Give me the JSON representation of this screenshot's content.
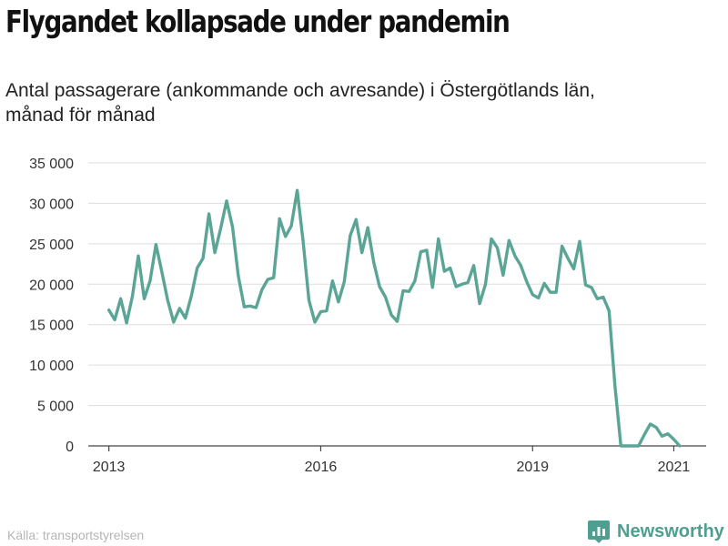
{
  "header": {
    "title": "Flygandet kollapsade under pandemin",
    "subtitle_line1": "Antal passagerare (ankommande och avresande) i Östergötlands län,",
    "subtitle_line2": "månad för månad"
  },
  "footer": {
    "source": "Källa: transportstyrelsen",
    "brand": "Newsworthy"
  },
  "colors": {
    "line": "#5aa596",
    "grid": "#dddddd",
    "brand": "#4e9e91"
  },
  "chart_data": {
    "type": "line",
    "title": "Flygandet kollapsade under pandemin",
    "subtitle": "Antal passagerare (ankommande och avresande) i Östergötlands län, månad för månad",
    "xlabel": "",
    "ylabel": "",
    "ylim": [
      0,
      35000
    ],
    "y_ticks": [
      0,
      5000,
      10000,
      15000,
      20000,
      25000,
      30000,
      35000
    ],
    "y_tick_labels": [
      "0",
      "5 000",
      "10 000",
      "15 000",
      "20 000",
      "25 000",
      "30 000",
      "35 000"
    ],
    "x_ticks": [
      2013,
      2016,
      2019,
      2021
    ],
    "x_tick_labels": [
      "2013",
      "2016",
      "2019",
      "2021"
    ],
    "xlim": [
      2012.708,
      2021.458
    ],
    "grid": "horizontal",
    "legend": "none",
    "x_start": "2013-01",
    "series": [
      {
        "values": [
          16800,
          15600,
          18200,
          15200,
          18500,
          23500,
          18200,
          20400,
          24900,
          21500,
          18000,
          15300,
          17000,
          15800,
          18500,
          22000,
          23200,
          28700,
          23900,
          26900,
          30300,
          27100,
          21000,
          17200,
          17300,
          17100,
          19300,
          20600,
          20800,
          28100,
          25900,
          27200,
          31600,
          25300,
          18000,
          15300,
          16600,
          16700,
          20400,
          17800,
          20300,
          26000,
          28000,
          23900,
          27000,
          22700,
          19700,
          18400,
          16200,
          15400,
          19200,
          19100,
          20400,
          24000,
          24200,
          19600,
          25600,
          21600,
          22000,
          19700,
          20000,
          20200,
          22300,
          17600,
          20000,
          25600,
          24500,
          21100,
          25400,
          23500,
          22300,
          20300,
          18700,
          18300,
          20100,
          19000,
          19000,
          24700,
          23200,
          21900,
          25300,
          19900,
          19600,
          18200,
          18400,
          16700,
          7400,
          0,
          0,
          0,
          0,
          1400,
          2700,
          2300,
          1200,
          1500,
          800,
          0
        ]
      }
    ]
  }
}
